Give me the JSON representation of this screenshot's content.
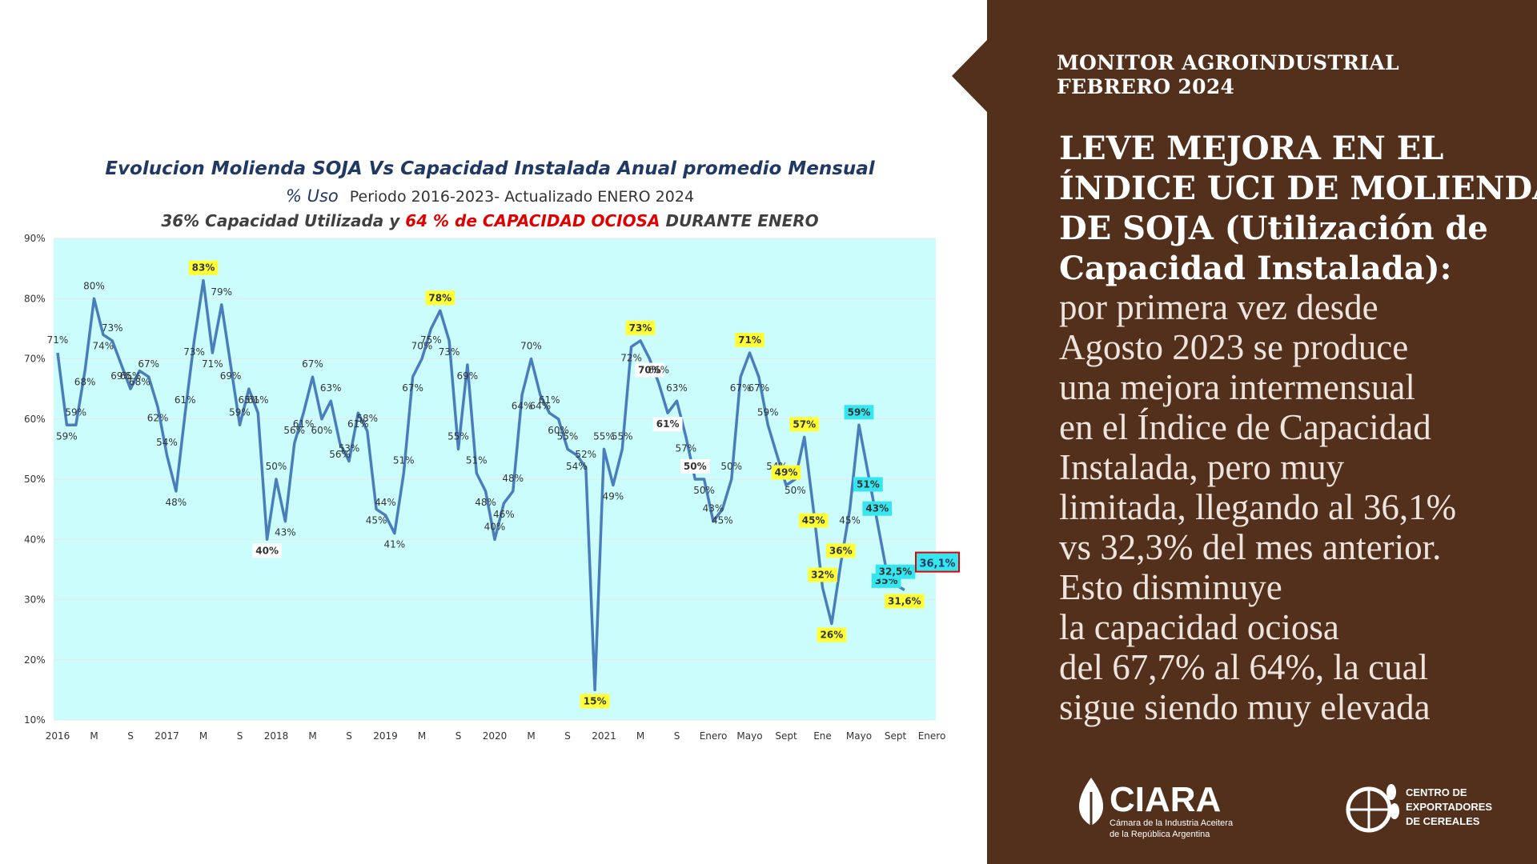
{
  "chart_data": {
    "type": "line",
    "title": "Evolucion Molienda  SOJA Vs Capacidad Instalada Anual promedio Mensual",
    "subtitle": {
      "lead": "% Uso",
      "rest": "Periodo  2016-2023-  Actualizado  ENERO 2024"
    },
    "subtitle2": {
      "part1": "36% Capacidad Utilizada y ",
      "part2": "64 % de CAPACIDAD OCIOSA",
      "part3": " DURANTE ENERO"
    },
    "categories": [
      "2016",
      null,
      null,
      null,
      "M",
      null,
      null,
      null,
      "S",
      null,
      null,
      null,
      "2017",
      null,
      null,
      null,
      "M",
      null,
      null,
      null,
      "S",
      null,
      null,
      null,
      "2018",
      null,
      null,
      null,
      "M",
      null,
      null,
      null,
      "S",
      null,
      null,
      null,
      "2019",
      null,
      null,
      null,
      "M",
      null,
      null,
      null,
      "S",
      null,
      null,
      null,
      "2020",
      null,
      null,
      null,
      "M",
      null,
      null,
      null,
      "S",
      null,
      null,
      null,
      "2021",
      null,
      null,
      null,
      "M",
      null,
      null,
      null,
      "S",
      null,
      null,
      null,
      "Enero",
      null,
      null,
      null,
      "Mayo",
      null,
      null,
      null,
      "Sept",
      null,
      null,
      null,
      "Ene",
      null,
      null,
      null,
      "Mayo",
      null,
      null,
      null,
      "Sept",
      null,
      null,
      null,
      "Enero"
    ],
    "series": [
      {
        "name": "% Uso",
        "color": "#4a7ebb",
        "values": [
          71,
          59,
          59,
          68,
          80,
          74,
          73,
          69,
          65,
          68,
          67,
          62,
          54,
          48,
          61,
          73,
          83,
          71,
          79,
          69,
          59,
          65,
          61,
          40,
          50,
          43,
          56,
          61,
          67,
          60,
          63,
          56,
          53,
          61,
          58,
          45,
          44,
          41,
          51,
          67,
          70,
          75,
          78,
          73,
          55,
          69,
          51,
          48,
          40,
          46,
          48,
          64,
          70,
          64,
          61,
          60,
          55,
          54,
          52,
          15,
          55,
          49,
          55,
          72,
          73,
          70,
          66,
          61,
          63,
          57,
          50,
          50,
          43,
          45,
          50,
          67,
          71,
          67,
          59,
          54,
          49,
          50,
          57,
          45,
          32,
          26,
          36,
          45,
          59,
          51,
          43,
          35,
          32.5,
          31.6,
          null,
          null,
          null
        ],
        "value_labels": [
          "71%",
          "59%",
          "59%",
          "68%",
          "80%",
          "74%",
          "73%",
          "69%",
          "65%",
          "68%",
          "67%",
          "62%",
          "54%",
          "48%",
          "61%",
          "73%",
          "83%",
          "71%",
          "79%",
          "69%",
          "59%",
          "65%",
          "61%",
          "40%",
          "50%",
          "43%",
          "56%",
          "61%",
          "67%",
          "60%",
          "63%",
          "56%",
          "53%",
          "61%",
          "58%",
          "45%",
          "44%",
          "41%",
          "51%",
          "67%",
          "70%",
          "75%",
          "78%",
          "73%",
          "55%",
          "69%",
          "51%",
          "48%",
          "40%",
          "46%",
          "48%",
          "64%",
          "70%",
          "64%",
          "61%",
          "60%",
          "55%",
          "54%",
          "52%",
          "15%",
          "55%",
          "49%",
          "55%",
          "72%",
          "73%",
          "70%",
          "66%",
          "61%",
          "63%",
          "57%",
          "50%",
          "50%",
          "43%",
          "45%",
          "50%",
          "67%",
          "71%",
          "67%",
          "59%",
          "54%",
          "49%",
          "50%",
          "57%",
          "45%",
          "32%",
          "26%",
          "36%",
          "45%",
          "59%",
          "51%",
          "43%",
          "35%",
          "32,5%",
          "31,6%",
          null,
          null,
          null
        ],
        "label_colors": [
          null,
          null,
          null,
          null,
          null,
          null,
          null,
          null,
          null,
          null,
          null,
          null,
          null,
          null,
          null,
          null,
          "#ffff33",
          null,
          null,
          null,
          null,
          null,
          null,
          "#ffffff",
          null,
          null,
          null,
          null,
          null,
          null,
          null,
          null,
          null,
          null,
          null,
          null,
          null,
          null,
          null,
          null,
          null,
          null,
          "#ffff33",
          null,
          null,
          null,
          null,
          null,
          null,
          null,
          null,
          null,
          null,
          null,
          null,
          null,
          null,
          null,
          null,
          "#ffff33",
          null,
          null,
          null,
          null,
          "#ffff33",
          "#ffffff",
          null,
          "#ffffff",
          null,
          null,
          "#ffffff",
          null,
          null,
          null,
          null,
          null,
          "#ffff33",
          null,
          null,
          null,
          "#ffff33",
          null,
          "#ffff33",
          "#ffff33",
          "#ffff33",
          "#ffff33",
          "#ffff33",
          null,
          "#33e6f0",
          "#33e6f0",
          "#33e6f0",
          "#33e6f0",
          "#33e6f0",
          "#ffff33",
          null,
          null,
          null
        ]
      }
    ],
    "annotation": "36,1%",
    "ylim": [
      10,
      90
    ],
    "yticks": [
      {
        "value": 10,
        "label": "10%"
      },
      {
        "value": 20,
        "label": "20%"
      },
      {
        "value": 30,
        "label": "30%"
      },
      {
        "value": 40,
        "label": "40%"
      },
      {
        "value": 50,
        "label": "50%"
      },
      {
        "value": 60,
        "label": "60%"
      },
      {
        "value": 70,
        "label": "70%"
      },
      {
        "value": 80,
        "label": "80%"
      },
      {
        "value": 90,
        "label": "90%"
      }
    ],
    "grid": true,
    "plot_background": "#ccfdfd"
  },
  "panel": {
    "kicker": [
      "MONITOR AGROINDUSTRIAL",
      "FEBRERO 2024"
    ],
    "heading": [
      "LEVE MEJORA EN EL",
      "ÍNDICE UCI DE MOLIENDA",
      "DE SOJA (Utilización de",
      "Capacidad Instalada):"
    ],
    "body": [
      "por primera vez desde",
      "Agosto 2023 se produce",
      "una mejora intermensual",
      "en el Índice de Capacidad",
      "Instalada, pero muy",
      "limitada, llegando al 36,1%",
      "vs 32,3% del mes anterior.",
      "Esto disminuye",
      "la capacidad ociosa",
      "del 67,7% al 64%, la cual",
      "sigue siendo muy elevada"
    ]
  },
  "logos": {
    "ciara": {
      "name": "CIARA",
      "line1": "Cámara de la Industria Aceitera",
      "line2": "de la República Argentina"
    },
    "cec": [
      "CENTRO DE",
      "EXPORTADORES",
      "DE CEREALES"
    ]
  }
}
